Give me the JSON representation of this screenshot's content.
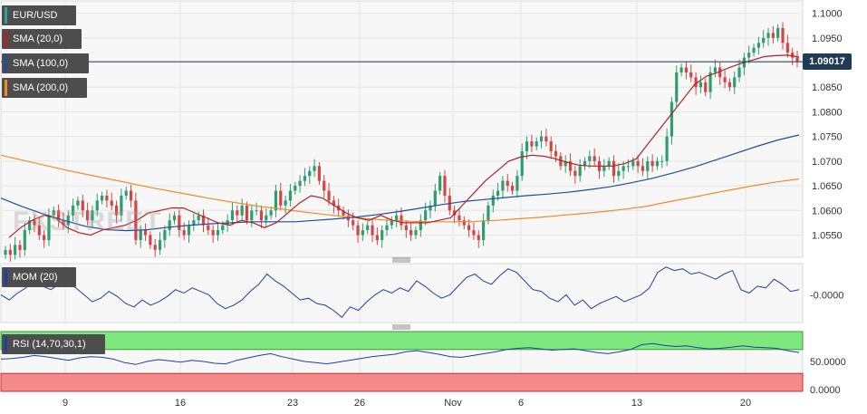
{
  "chart_data": {
    "type": "candlestick",
    "panels": [
      {
        "name": "price",
        "legend": [
          {
            "label": "EUR/USD",
            "color": "#26a69a"
          },
          {
            "label": "SMA (20,0)",
            "color": "#b22222"
          },
          {
            "label": "SMA (100,0)",
            "color": "#1f4e9e"
          },
          {
            "label": "SMA (200,0)",
            "color": "#f28c28"
          }
        ],
        "y_ticks": [
          "1.1000",
          "1.0950",
          "1.0900",
          "1.0850",
          "1.0800",
          "1.0750",
          "1.0700",
          "1.0650",
          "1.0600",
          "1.0550"
        ],
        "ylim": [
          1.0505,
          1.1025
        ],
        "current_price": "1.09017",
        "close_series": [
          1.052,
          1.051,
          1.053,
          1.052,
          1.056,
          1.058,
          1.057,
          1.055,
          1.054,
          1.059,
          1.06,
          1.058,
          1.057,
          1.059,
          1.061,
          1.062,
          1.06,
          1.058,
          1.06,
          1.062,
          1.063,
          1.062,
          1.061,
          1.059,
          1.063,
          1.064,
          1.062,
          1.054,
          1.056,
          1.055,
          1.053,
          1.052,
          1.054,
          1.056,
          1.058,
          1.059,
          1.056,
          1.055,
          1.057,
          1.058,
          1.059,
          1.057,
          1.056,
          1.055,
          1.056,
          1.057,
          1.058,
          1.06,
          1.059,
          1.061,
          1.058,
          1.06,
          1.06,
          1.058,
          1.059,
          1.06,
          1.064,
          1.061,
          1.062,
          1.064,
          1.065,
          1.066,
          1.067,
          1.068,
          1.069,
          1.066,
          1.064,
          1.062,
          1.061,
          1.06,
          1.059,
          1.058,
          1.057,
          1.055,
          1.056,
          1.057,
          1.055,
          1.054,
          1.056,
          1.057,
          1.058,
          1.059,
          1.057,
          1.056,
          1.055,
          1.056,
          1.058,
          1.06,
          1.061,
          1.064,
          1.067,
          1.063,
          1.06,
          1.059,
          1.058,
          1.057,
          1.056,
          1.055,
          1.054,
          1.058,
          1.061,
          1.063,
          1.064,
          1.066,
          1.065,
          1.064,
          1.067,
          1.072,
          1.074,
          1.073,
          1.074,
          1.075,
          1.074,
          1.072,
          1.071,
          1.069,
          1.07,
          1.068,
          1.067,
          1.069,
          1.07,
          1.071,
          1.07,
          1.068,
          1.069,
          1.07,
          1.067,
          1.068,
          1.069,
          1.069,
          1.07,
          1.069,
          1.068,
          1.07,
          1.069,
          1.07,
          1.07,
          1.075,
          1.082,
          1.088,
          1.089,
          1.088,
          1.087,
          1.085,
          1.086,
          1.084,
          1.088,
          1.089,
          1.087,
          1.086,
          1.085,
          1.087,
          1.089,
          1.091,
          1.092,
          1.093,
          1.094,
          1.095,
          1.096,
          1.095,
          1.097,
          1.094,
          1.092,
          1.091,
          1.0902
        ],
        "sma20_series": [
          1.0545,
          1.0565,
          1.058,
          1.059,
          1.0585,
          1.0565,
          1.0555,
          1.055,
          1.056,
          1.0565,
          1.057,
          1.058,
          1.0595,
          1.06,
          1.0605,
          1.0605,
          1.0595,
          1.0585,
          1.0575,
          1.057,
          1.058,
          1.0575,
          1.0565,
          1.0575,
          1.0595,
          1.0615,
          1.063,
          1.0625,
          1.061,
          1.0595,
          1.0585,
          1.058,
          1.059,
          1.058,
          1.0575,
          1.0575,
          1.0575,
          1.058,
          1.0585,
          1.061,
          1.0635,
          1.066,
          1.068,
          1.07,
          1.0708,
          1.0712,
          1.071,
          1.0705,
          1.0698,
          1.0692,
          1.069,
          1.069,
          1.069,
          1.0695,
          1.0705,
          1.0735,
          1.0765,
          1.0795,
          1.0825,
          1.0855,
          1.0872,
          1.088,
          1.089,
          1.0898,
          1.0905,
          1.0912,
          1.0914,
          1.0915,
          1.0911
        ],
        "sma100_series": [
          1.0625,
          1.0608,
          1.0593,
          1.058,
          1.0568,
          1.0561,
          1.0559,
          1.0561,
          1.0566,
          1.057,
          1.0573,
          1.0575,
          1.0577,
          1.0577,
          1.0577,
          1.058,
          1.0583,
          1.0587,
          1.0592,
          1.0598,
          1.0605,
          1.0612,
          1.0618,
          1.0622,
          1.0626,
          1.063,
          1.0633,
          1.0637,
          1.0642,
          1.0648,
          1.0656,
          1.0665,
          1.0676,
          1.0688,
          1.0702,
          1.0716,
          1.073,
          1.0743,
          1.0753
        ],
        "sma200_series": [
          1.0712,
          1.0702,
          1.0692,
          1.0682,
          1.0673,
          1.0664,
          1.0655,
          1.0646,
          1.0638,
          1.063,
          1.0622,
          1.0615,
          1.0608,
          1.0603,
          1.0597,
          1.0592,
          1.0587,
          1.0583,
          1.058,
          1.0578,
          1.0577,
          1.0577,
          1.0578,
          1.058,
          1.0583,
          1.0586,
          1.059,
          1.0594,
          1.0598,
          1.0603,
          1.0609,
          1.0618,
          1.0626,
          1.0635,
          1.0643,
          1.0651,
          1.0658,
          1.0664
        ],
        "watermark": "FXSTREET"
      },
      {
        "name": "momentum",
        "legend": [
          {
            "label": "MOM (20)",
            "color": "#1f3ea8"
          }
        ],
        "y_ticks": [
          "-0.0000"
        ],
        "series": [
          0.0,
          -0.3,
          0.1,
          0.4,
          0.9,
          0.5,
          0.3,
          0.6,
          0.8,
          0.4,
          0.0,
          -0.4,
          -0.2,
          0.2,
          -0.1,
          -0.5,
          -0.7,
          -0.3,
          -0.6,
          -0.4,
          -0.1,
          0.3,
          0.1,
          0.4,
          0.2,
          0.0,
          -0.5,
          -0.8,
          -0.6,
          -0.3,
          0.2,
          0.6,
          1.2,
          0.8,
          0.5,
          0.1,
          -0.3,
          -0.2,
          -0.5,
          -0.6,
          -0.9,
          -1.3,
          -0.7,
          -0.9,
          -0.4,
          0.0,
          0.3,
          0.1,
          0.4,
          0.2,
          0.8,
          0.5,
          0.1,
          -0.2,
          0.0,
          0.5,
          1.0,
          1.2,
          0.8,
          0.6,
          1.1,
          1.5,
          1.3,
          0.8,
          0.3,
          0.2,
          -0.2,
          -0.4,
          0.0,
          -0.6,
          -0.3,
          -0.8,
          -0.5,
          -0.3,
          -0.1,
          -0.4,
          -0.2,
          0.0,
          0.4,
          1.3,
          1.6,
          1.4,
          1.5,
          1.2,
          1.3,
          1.1,
          0.9,
          1.2,
          1.4,
          0.3,
          0.1,
          0.5,
          0.4,
          0.9,
          0.6,
          0.2,
          0.3
        ],
        "ylim": [
          -1.6,
          1.8
        ]
      },
      {
        "name": "rsi",
        "legend": [
          {
            "label": "RSI (14,70,30,1)",
            "color": "#1f3ea8"
          }
        ],
        "y_ticks": [
          "50.0000",
          "0.0000"
        ],
        "overbought": 70,
        "oversold": 30,
        "series": [
          54,
          55,
          57,
          60,
          58,
          55,
          52,
          56,
          58,
          57,
          54,
          48,
          45,
          50,
          53,
          51,
          49,
          52,
          50,
          47,
          46,
          52,
          56,
          60,
          63,
          58,
          54,
          50,
          48,
          46,
          49,
          52,
          55,
          58,
          60,
          62,
          66,
          68,
          65,
          62,
          58,
          57,
          60,
          63,
          66,
          70,
          72,
          73,
          71,
          69,
          70,
          71,
          68,
          65,
          63,
          66,
          70,
          78,
          80,
          77,
          75,
          76,
          73,
          71,
          72,
          74,
          76,
          74,
          73,
          72,
          68,
          65
        ],
        "ylim": [
          0,
          100
        ]
      }
    ],
    "x_ticks": [
      "9",
      "16",
      "23",
      "26",
      "Nov",
      "6",
      "13",
      "20"
    ]
  }
}
